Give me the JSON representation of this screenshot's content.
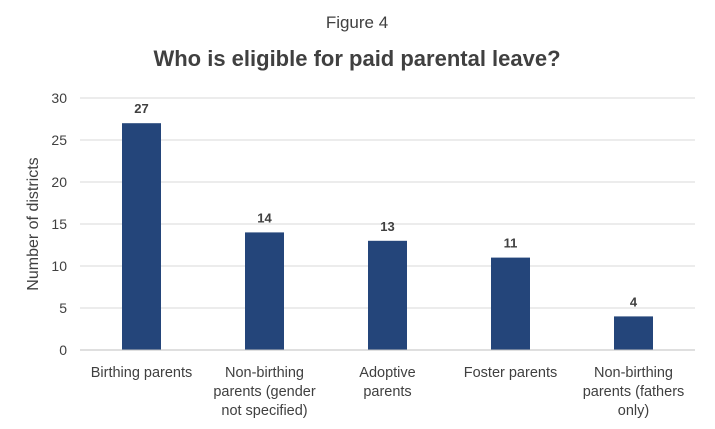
{
  "figure_label": "Figure 4",
  "chart_data": {
    "type": "bar",
    "title": "Who is eligible for paid parental leave?",
    "ylabel": "Number of districts",
    "xlabel": "",
    "categories": [
      [
        "Birthing parents"
      ],
      [
        "Non-birthing",
        "parents (gender",
        "not specified)"
      ],
      [
        "Adoptive",
        "parents"
      ],
      [
        "Foster parents"
      ],
      [
        "Non-birthing",
        "parents (fathers",
        "only)"
      ]
    ],
    "values": [
      27,
      14,
      13,
      11,
      4
    ],
    "ylim": [
      0,
      30
    ],
    "yticks": [
      0,
      5,
      10,
      15,
      20,
      25,
      30
    ],
    "grid": true,
    "bar_color": "#24457a"
  }
}
